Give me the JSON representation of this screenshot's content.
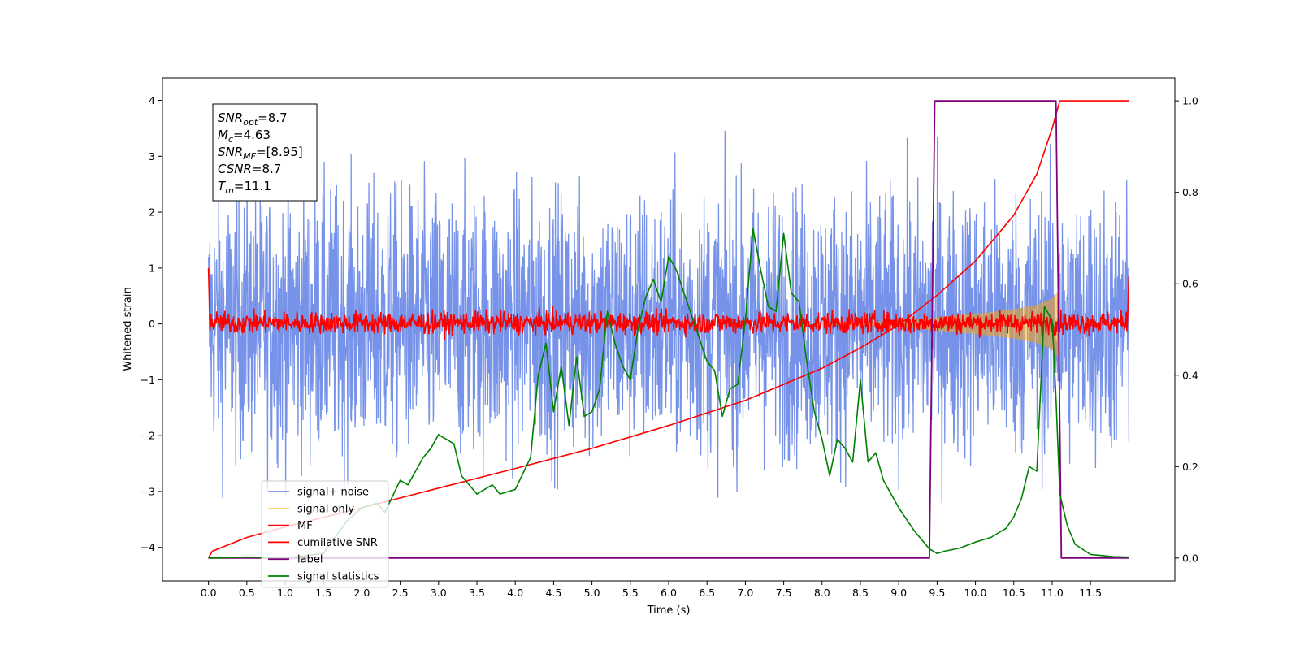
{
  "chart_data": {
    "type": "line",
    "xlabel": "Time (s)",
    "ylabel": "Whitened strain",
    "xlim": [
      -0.6,
      12.6
    ],
    "ylim": [
      -4.6,
      4.4
    ],
    "ylim_right": [
      -0.05,
      1.05
    ],
    "x_ticks": [
      "0.0",
      "0.5",
      "1.0",
      "1.5",
      "2.0",
      "2.5",
      "3.0",
      "3.5",
      "4.0",
      "4.5",
      "5.0",
      "5.5",
      "6.0",
      "6.5",
      "7.0",
      "7.5",
      "8.0",
      "8.5",
      "9.0",
      "9.5",
      "10.0",
      "10.5",
      "11.0",
      "11.5"
    ],
    "y_ticks": [
      "4",
      "3",
      "2",
      "1",
      "0",
      "−1",
      "−2",
      "−3",
      "−4"
    ],
    "y_ticks_right": [
      "1.0",
      "0.8",
      "0.6",
      "0.4",
      "0.2",
      "0.0"
    ],
    "legend_position": "lower-left",
    "info_box": [
      {
        "sym": "SNR",
        "sub": "opt",
        "val": "=8.7"
      },
      {
        "sym": "M",
        "sub": "c",
        "val": "=4.63"
      },
      {
        "sym": "SNR",
        "sub": "MF",
        "val": "=[8.95]"
      },
      {
        "sym": "CSNR",
        "sub": "",
        "val": "=8.7"
      },
      {
        "sym": "T",
        "sub": "m",
        "val": "=11.1"
      }
    ],
    "series": [
      {
        "name": "signal+ noise",
        "color": "#4169e1",
        "axis": "left",
        "style": "noise",
        "x_range": [
          0.0,
          12.0
        ],
        "amplitude": 1.2
      },
      {
        "name": "signal only",
        "color": "#ffa500",
        "axis": "left",
        "style": "chirp",
        "envelope": {
          "x": [
            8.0,
            9.0,
            9.5,
            10.0,
            10.5,
            10.8,
            11.0,
            11.1
          ],
          "y": [
            0.02,
            0.05,
            0.12,
            0.18,
            0.26,
            0.34,
            0.45,
            0.62
          ]
        }
      },
      {
        "name": "MF",
        "color": "#ff0000",
        "axis": "left",
        "style": "noise",
        "x_range": [
          0.0,
          12.0
        ],
        "amplitude": 0.1
      },
      {
        "name": "cumilative SNR",
        "color": "#ff0000",
        "axis": "right",
        "x": [
          0.0,
          0.05,
          0.5,
          1.0,
          2.0,
          3.0,
          4.0,
          5.0,
          6.0,
          7.0,
          8.0,
          8.5,
          9.0,
          9.5,
          10.0,
          10.5,
          10.8,
          11.0,
          11.1,
          11.15,
          12.0
        ],
        "y": [
          0.0,
          0.015,
          0.045,
          0.068,
          0.11,
          0.153,
          0.196,
          0.24,
          0.29,
          0.345,
          0.415,
          0.46,
          0.51,
          0.575,
          0.65,
          0.75,
          0.84,
          0.94,
          1.0,
          1.0,
          1.0
        ]
      },
      {
        "name": "label",
        "color": "#800080",
        "axis": "right",
        "x": [
          0.0,
          9.4,
          9.47,
          11.05,
          11.12,
          12.0
        ],
        "y": [
          0.0,
          0.0,
          1.0,
          1.0,
          0.0,
          0.0
        ]
      },
      {
        "name": "signal statistics",
        "color": "#008000",
        "axis": "right",
        "x": [
          0.0,
          0.5,
          1.0,
          1.5,
          1.8,
          2.0,
          2.2,
          2.3,
          2.5,
          2.6,
          2.8,
          2.9,
          3.0,
          3.2,
          3.3,
          3.5,
          3.7,
          3.8,
          4.0,
          4.2,
          4.3,
          4.4,
          4.5,
          4.6,
          4.7,
          4.8,
          4.9,
          5.0,
          5.1,
          5.2,
          5.3,
          5.4,
          5.5,
          5.6,
          5.7,
          5.8,
          5.9,
          6.0,
          6.1,
          6.2,
          6.4,
          6.5,
          6.6,
          6.7,
          6.8,
          6.9,
          7.0,
          7.1,
          7.2,
          7.3,
          7.4,
          7.5,
          7.6,
          7.7,
          7.8,
          7.9,
          8.0,
          8.1,
          8.2,
          8.3,
          8.4,
          8.5,
          8.6,
          8.7,
          8.8,
          9.0,
          9.2,
          9.4,
          9.5,
          9.6,
          9.8,
          10.0,
          10.2,
          10.4,
          10.5,
          10.6,
          10.7,
          10.8,
          10.9,
          11.0,
          11.05,
          11.1,
          11.2,
          11.3,
          11.5,
          11.8,
          12.0
        ],
        "y": [
          0.0,
          0.002,
          0.0,
          0.01,
          0.08,
          0.11,
          0.12,
          0.1,
          0.17,
          0.16,
          0.22,
          0.24,
          0.27,
          0.25,
          0.18,
          0.14,
          0.16,
          0.14,
          0.15,
          0.22,
          0.4,
          0.47,
          0.32,
          0.42,
          0.29,
          0.44,
          0.31,
          0.32,
          0.37,
          0.54,
          0.47,
          0.42,
          0.39,
          0.5,
          0.57,
          0.61,
          0.56,
          0.66,
          0.63,
          0.58,
          0.48,
          0.43,
          0.41,
          0.31,
          0.37,
          0.38,
          0.52,
          0.72,
          0.63,
          0.55,
          0.54,
          0.71,
          0.58,
          0.56,
          0.43,
          0.32,
          0.26,
          0.18,
          0.26,
          0.24,
          0.21,
          0.39,
          0.21,
          0.23,
          0.17,
          0.11,
          0.06,
          0.02,
          0.01,
          0.015,
          0.022,
          0.035,
          0.045,
          0.065,
          0.09,
          0.13,
          0.2,
          0.19,
          0.55,
          0.52,
          0.35,
          0.14,
          0.07,
          0.03,
          0.008,
          0.003,
          0.002
        ]
      }
    ]
  }
}
